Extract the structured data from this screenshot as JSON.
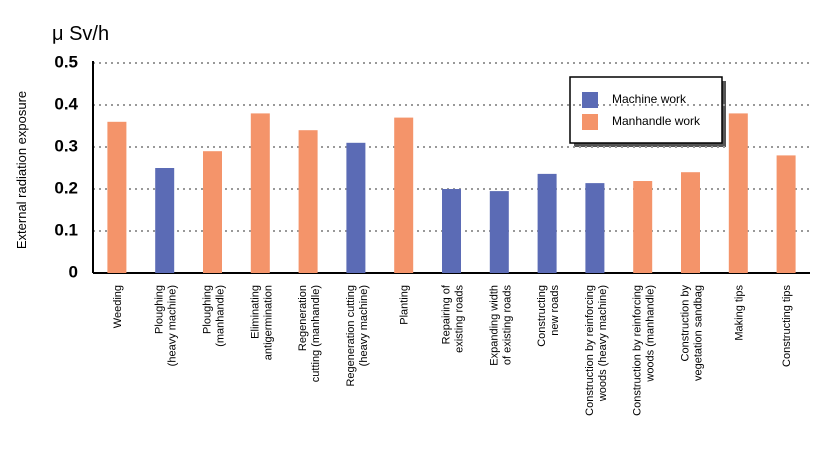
{
  "chart_data": {
    "type": "bar",
    "unit_label": "μ Sv/h",
    "y_label": "External radiation exposure",
    "categories": [
      "Weeding",
      "Ploughing (heavy machine)",
      "Ploughing (manhandle)",
      "Eliminating antigermination",
      "Regeneration cutting (manhandle)",
      "Regeneration cutting (heavy machine)",
      "Planting",
      "Repairing of existing roads",
      "Expanding width of existing roads",
      "Constructing new roads",
      "Construction by reinforcing woods (heavy machine)",
      "Construction by reinforcing woods (manhandle)",
      "Construction by vegetation sandbag",
      "Making tips",
      "Constructing tips"
    ],
    "series": [
      {
        "name": "Machine work",
        "color": "#5b6bb5",
        "values": [
          null,
          0.25,
          null,
          null,
          null,
          0.31,
          null,
          0.2,
          0.195,
          0.236,
          0.214,
          null,
          null,
          null,
          null
        ]
      },
      {
        "name": "Manhandle work",
        "color": "#f4946a",
        "values": [
          0.36,
          null,
          0.29,
          0.38,
          0.34,
          null,
          0.37,
          null,
          null,
          null,
          null,
          0.219,
          0.24,
          0.38,
          0.28
        ]
      }
    ],
    "ylim": [
      0,
      0.5
    ],
    "yticks": [
      0,
      0.1,
      0.2,
      0.3,
      0.4,
      0.5
    ],
    "grid": true
  }
}
